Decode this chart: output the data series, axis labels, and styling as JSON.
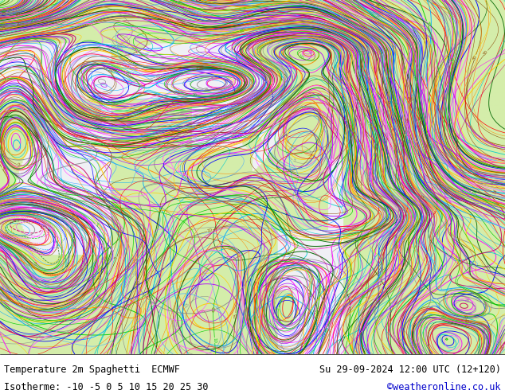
{
  "title_left": "Temperature 2m Spaghetti  ECMWF",
  "title_right": "Su 29-09-2024 12:00 UTC (12+120)",
  "isotherme_label": "Isotherme: -10 -5 0 5 10 15 20 25 30",
  "credit": "©weatheronline.co.uk",
  "land_color": [
    212,
    237,
    170
  ],
  "sea_color": [
    240,
    240,
    245
  ],
  "white_sea_color": [
    255,
    255,
    255
  ],
  "bottom_bar_color": "#ffffff",
  "bottom_text_color": "#000000",
  "credit_color": "#0000cc",
  "fig_width": 6.34,
  "fig_height": 4.9,
  "dpi": 100,
  "contour_colors": [
    "#888888",
    "#ff00ff",
    "#ff0000",
    "#ff8800",
    "#ffcc00",
    "#00cc00",
    "#00aaff",
    "#0000ff",
    "#aa00ff",
    "#00cccc",
    "#884400",
    "#006600",
    "#cc0066",
    "#ff66ff",
    "#44aaff"
  ],
  "isotherm_values": [
    -10,
    -5,
    0,
    5,
    10,
    15,
    20,
    25,
    30
  ],
  "noise_seed": 123,
  "num_members": 51
}
